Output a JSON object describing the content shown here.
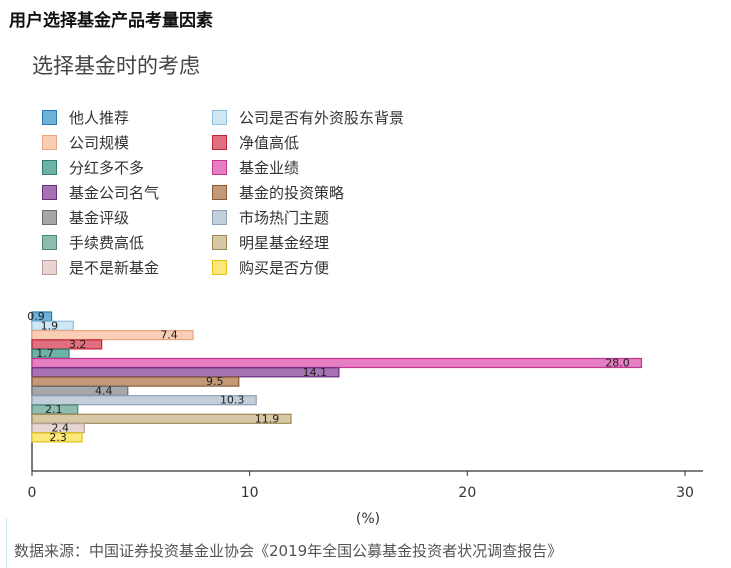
{
  "page_title": "用户选择基金产品考量因素",
  "source_note": "数据来源：中国证券投资基金业协会《2019年全国公募基金投资者状况调查报告》",
  "chart_data": {
    "type": "bar",
    "orientation": "horizontal",
    "title": "选择基金时的考虑",
    "xlabel": "(%)",
    "ylabel": "",
    "xlim": [
      0,
      31
    ],
    "xticks": [
      "0",
      "10",
      "20",
      "30"
    ],
    "legend_position": "top",
    "grid": false,
    "show_value_labels": true,
    "series": [
      {
        "name": "他人推荐",
        "value": 0.9,
        "label": "0.9",
        "fill": "#6fb0d6",
        "stroke": "#2a7bb0"
      },
      {
        "name": "公司是否有外资股东背景",
        "value": 1.9,
        "label": "1.9",
        "fill": "#cfe6f3",
        "stroke": "#8fc0dd"
      },
      {
        "name": "公司规模",
        "value": 7.4,
        "label": "7.4",
        "fill": "#f9cdb6",
        "stroke": "#eaa684"
      },
      {
        "name": "净值高低",
        "value": 3.2,
        "label": "3.2",
        "fill": "#e0707f",
        "stroke": "#c12438"
      },
      {
        "name": "分红多不多",
        "value": 1.7,
        "label": "1.7",
        "fill": "#6db2a5",
        "stroke": "#2d7e70"
      },
      {
        "name": "基金业绩",
        "value": 28.0,
        "label": "28.0",
        "fill": "#e67ec3",
        "stroke": "#c2368f"
      },
      {
        "name": "基金公司名气",
        "value": 14.1,
        "label": "14.1",
        "fill": "#a772b2",
        "stroke": "#6a2d7f"
      },
      {
        "name": "基金的投资策略",
        "value": 9.5,
        "label": "9.5",
        "fill": "#c29a78",
        "stroke": "#8b5a34"
      },
      {
        "name": "基金评级",
        "value": 4.4,
        "label": "4.4",
        "fill": "#a7a7a7",
        "stroke": "#6e6e6e"
      },
      {
        "name": "市场热门主题",
        "value": 10.3,
        "label": "10.3",
        "fill": "#c2cfdb",
        "stroke": "#8ca1b5"
      },
      {
        "name": "手续费高低",
        "value": 2.1,
        "label": "2.1",
        "fill": "#8fbcb1",
        "stroke": "#4c8677"
      },
      {
        "name": "明星基金经理",
        "value": 11.9,
        "label": "11.9",
        "fill": "#d8c9a6",
        "stroke": "#9e8756"
      },
      {
        "name": "是不是新基金",
        "value": 2.4,
        "label": "2.4",
        "fill": "#e6d5d2",
        "stroke": "#b89d98"
      },
      {
        "name": "购买是否方便",
        "value": 2.3,
        "label": "2.3",
        "fill": "#fbe77a",
        "stroke": "#e0c416"
      }
    ]
  }
}
